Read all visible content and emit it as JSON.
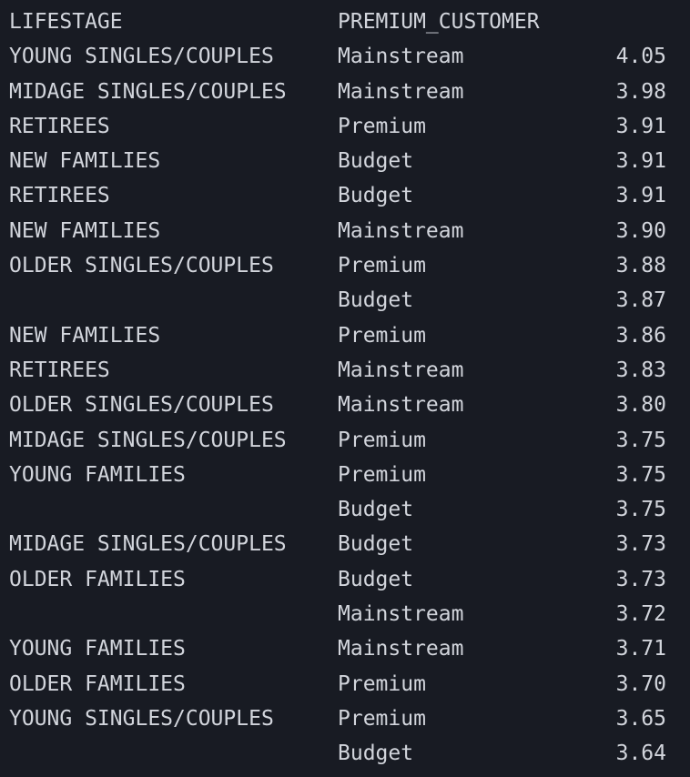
{
  "table": {
    "headers": {
      "lifestage": "LIFESTAGE",
      "premium_customer": "PREMIUM_CUSTOMER",
      "value": ""
    },
    "rows": [
      {
        "lifestage": "YOUNG SINGLES/COUPLES",
        "premium_customer": "Mainstream",
        "value": "4.05"
      },
      {
        "lifestage": "MIDAGE SINGLES/COUPLES",
        "premium_customer": "Mainstream",
        "value": "3.98"
      },
      {
        "lifestage": "RETIREES",
        "premium_customer": "Premium",
        "value": "3.91"
      },
      {
        "lifestage": "NEW FAMILIES",
        "premium_customer": "Budget",
        "value": "3.91"
      },
      {
        "lifestage": "RETIREES",
        "premium_customer": "Budget",
        "value": "3.91"
      },
      {
        "lifestage": "NEW FAMILIES",
        "premium_customer": "Mainstream",
        "value": "3.90"
      },
      {
        "lifestage": "OLDER SINGLES/COUPLES",
        "premium_customer": "Premium",
        "value": "3.88"
      },
      {
        "lifestage": "",
        "premium_customer": "Budget",
        "value": "3.87"
      },
      {
        "lifestage": "NEW FAMILIES",
        "premium_customer": "Premium",
        "value": "3.86"
      },
      {
        "lifestage": "RETIREES",
        "premium_customer": "Mainstream",
        "value": "3.83"
      },
      {
        "lifestage": "OLDER SINGLES/COUPLES",
        "premium_customer": "Mainstream",
        "value": "3.80"
      },
      {
        "lifestage": "MIDAGE SINGLES/COUPLES",
        "premium_customer": "Premium",
        "value": "3.75"
      },
      {
        "lifestage": "YOUNG FAMILIES",
        "premium_customer": "Premium",
        "value": "3.75"
      },
      {
        "lifestage": "",
        "premium_customer": "Budget",
        "value": "3.75"
      },
      {
        "lifestage": "MIDAGE SINGLES/COUPLES",
        "premium_customer": "Budget",
        "value": "3.73"
      },
      {
        "lifestage": "OLDER FAMILIES",
        "premium_customer": "Budget",
        "value": "3.73"
      },
      {
        "lifestage": "",
        "premium_customer": "Mainstream",
        "value": "3.72"
      },
      {
        "lifestage": "YOUNG FAMILIES",
        "premium_customer": "Mainstream",
        "value": "3.71"
      },
      {
        "lifestage": "OLDER FAMILIES",
        "premium_customer": "Premium",
        "value": "3.70"
      },
      {
        "lifestage": "YOUNG SINGLES/COUPLES",
        "premium_customer": "Premium",
        "value": "3.65"
      },
      {
        "lifestage": "",
        "premium_customer": "Budget",
        "value": "3.64"
      }
    ]
  }
}
